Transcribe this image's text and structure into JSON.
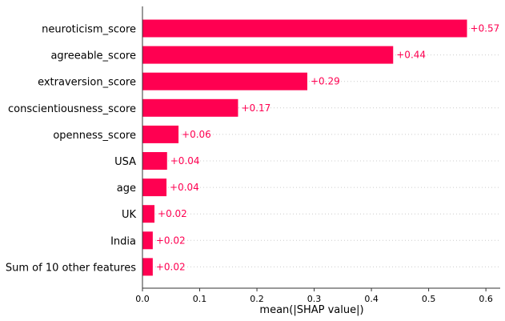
{
  "chart_data": {
    "type": "bar",
    "orientation": "horizontal",
    "title": "",
    "xlabel": "mean(|SHAP value|)",
    "ylabel": "",
    "xlim": [
      0,
      0.625
    ],
    "xticks": [
      0.0,
      0.1,
      0.2,
      0.3,
      0.4,
      0.5,
      0.6
    ],
    "xtick_labels": [
      "0.0",
      "0.1",
      "0.2",
      "0.3",
      "0.4",
      "0.5",
      "0.6"
    ],
    "grid": false,
    "bar_color": "#ff0051",
    "categories": [
      "neuroticism_score",
      "agreeable_score",
      "extraversion_score",
      "conscientiousness_score",
      "openness_score",
      "USA",
      "age",
      "UK",
      "India",
      "Sum of 10 other features"
    ],
    "values": [
      0.567,
      0.438,
      0.288,
      0.167,
      0.063,
      0.043,
      0.042,
      0.021,
      0.018,
      0.018
    ],
    "value_labels": [
      "+0.57",
      "+0.44",
      "+0.29",
      "+0.17",
      "+0.06",
      "+0.04",
      "+0.04",
      "+0.02",
      "+0.02",
      "+0.02"
    ]
  }
}
